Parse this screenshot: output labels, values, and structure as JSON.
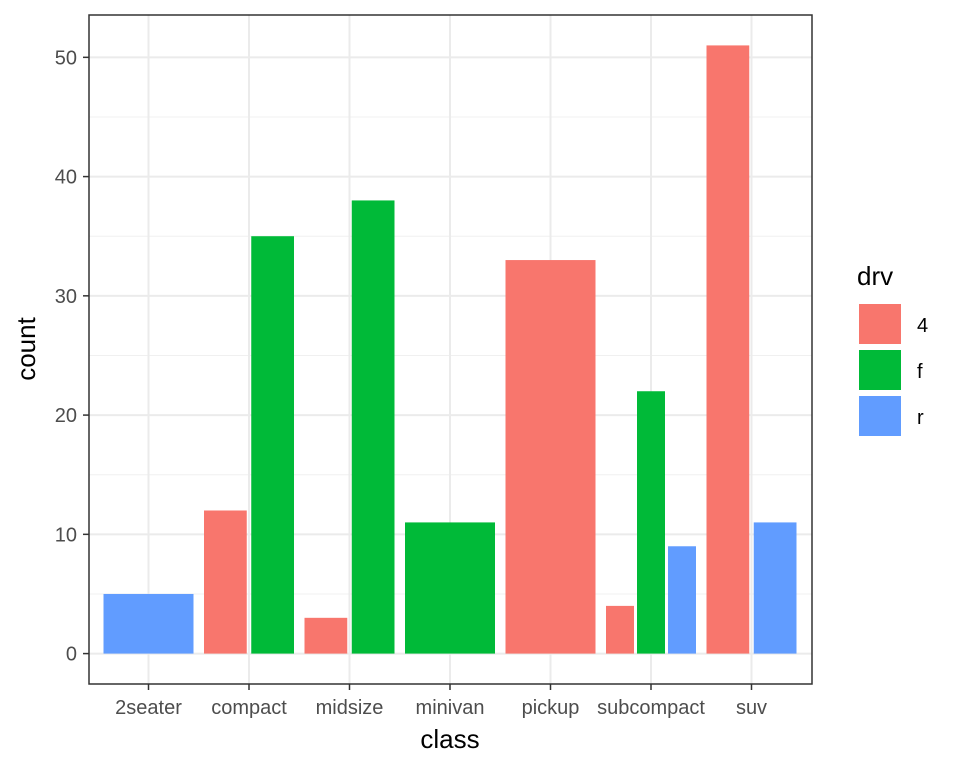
{
  "chart_data": {
    "type": "bar",
    "position": "dodge2",
    "title": "",
    "xlabel": "class",
    "ylabel": "count",
    "categories": [
      "2seater",
      "compact",
      "midsize",
      "minivan",
      "pickup",
      "subcompact",
      "suv"
    ],
    "y_ticks": [
      0,
      10,
      20,
      30,
      40,
      50
    ],
    "ylim": [
      -2.55,
      53.55
    ],
    "grid": true,
    "legend": {
      "title": "drv",
      "placement": "right",
      "entries": [
        {
          "label": "4",
          "color": "#F8766D"
        },
        {
          "label": "f",
          "color": "#00BA38"
        },
        {
          "label": "r",
          "color": "#619CFF"
        }
      ]
    },
    "data": [
      {
        "category": "2seater",
        "groups": [
          {
            "drv": "r",
            "value": 5
          }
        ]
      },
      {
        "category": "compact",
        "groups": [
          {
            "drv": "4",
            "value": 12
          },
          {
            "drv": "f",
            "value": 35
          }
        ]
      },
      {
        "category": "midsize",
        "groups": [
          {
            "drv": "4",
            "value": 3
          },
          {
            "drv": "f",
            "value": 38
          }
        ]
      },
      {
        "category": "minivan",
        "groups": [
          {
            "drv": "f",
            "value": 11
          }
        ]
      },
      {
        "category": "pickup",
        "groups": [
          {
            "drv": "4",
            "value": 33
          }
        ]
      },
      {
        "category": "subcompact",
        "groups": [
          {
            "drv": "4",
            "value": 4
          },
          {
            "drv": "f",
            "value": 22
          },
          {
            "drv": "r",
            "value": 9
          }
        ]
      },
      {
        "category": "suv",
        "groups": [
          {
            "drv": "4",
            "value": 51
          },
          {
            "drv": "r",
            "value": 11
          }
        ]
      }
    ]
  }
}
